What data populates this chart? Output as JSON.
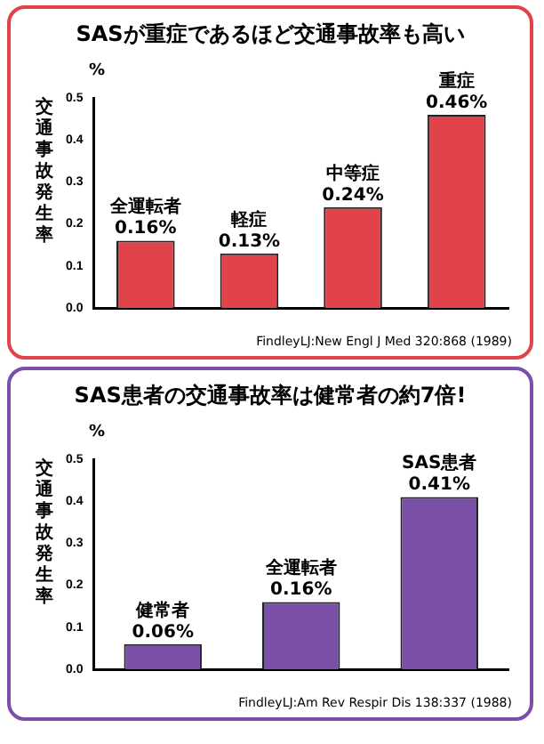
{
  "chart_data": [
    {
      "type": "bar",
      "title": "SASが重症であるほど交通事故率も高い",
      "ylabel": "交通事故発生率",
      "categories": [
        "全運転者",
        "軽症",
        "中等症",
        "重症"
      ],
      "values": [
        0.16,
        0.13,
        0.24,
        0.46
      ],
      "color": "#e0434a",
      "value_labels": [
        "0.16%",
        "0.13%",
        "0.24%",
        "0.46%"
      ],
      "ylim": [
        0,
        0.5
      ],
      "yticks": [
        {
          "value": 0,
          "label": "0.0"
        },
        {
          "value": 0.1,
          "label": "0.1"
        },
        {
          "value": 0.2,
          "label": "0.2"
        },
        {
          "value": 0.3,
          "label": "0.3"
        },
        {
          "value": 0.4,
          "label": "0.4"
        },
        {
          "value": 0.5,
          "label": "0.5"
        }
      ],
      "tick_labels": "y",
      "annotations": [
        "%",
        "FindleyLJ:New Engl J Med 320:868 (1989)"
      ]
    },
    {
      "type": "bar",
      "title": "SAS患者の交通事故率は健常者の約7倍!",
      "ylabel": "交通事故発生率",
      "categories": [
        "健常者",
        "全運転者",
        "SAS患者"
      ],
      "values": [
        0.06,
        0.16,
        0.41
      ],
      "color": "#7a4fa8",
      "value_labels": [
        "0.06%",
        "0.16%",
        "0.41%"
      ],
      "ylim": [
        0,
        0.5
      ],
      "yticks": [
        {
          "value": 0,
          "label": "0.0"
        },
        {
          "value": 0.1,
          "label": "0.1"
        },
        {
          "value": 0.2,
          "label": "0.2"
        },
        {
          "value": 0.3,
          "label": "0.3"
        },
        {
          "value": 0.4,
          "label": "0.4"
        },
        {
          "value": 0.5,
          "label": "0.5"
        }
      ],
      "tick_labels": "y",
      "annotations": [
        "%",
        "FindleyLJ:Am Rev Respir Dis 138:337 (1988)"
      ]
    }
  ]
}
